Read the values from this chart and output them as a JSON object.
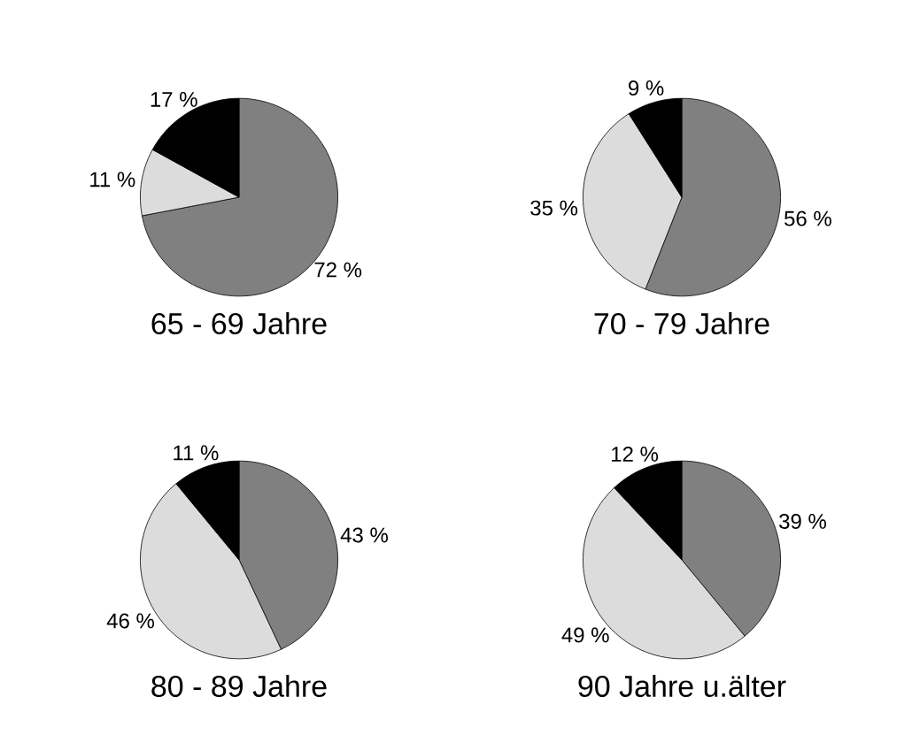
{
  "chart_data": [
    {
      "type": "pie",
      "title": "65 - 69 Jahre",
      "categories": [
        null,
        null,
        null
      ],
      "values": [
        72,
        11,
        17
      ],
      "colors": [
        "#808080",
        "#dcdcdc",
        "#000000"
      ],
      "value_labels": [
        "72 %",
        "11 %",
        "17 %"
      ]
    },
    {
      "type": "pie",
      "title": "70 - 79 Jahre",
      "categories": [
        null,
        null,
        null
      ],
      "values": [
        56,
        35,
        9
      ],
      "colors": [
        "#808080",
        "#dcdcdc",
        "#000000"
      ],
      "value_labels": [
        "56 %",
        "35 %",
        "9 %"
      ]
    },
    {
      "type": "pie",
      "title": "80 - 89 Jahre",
      "categories": [
        null,
        null,
        null
      ],
      "values": [
        43,
        46,
        11
      ],
      "colors": [
        "#808080",
        "#dcdcdc",
        "#000000"
      ],
      "value_labels": [
        "43 %",
        "46 %",
        "11 %"
      ]
    },
    {
      "type": "pie",
      "title": "90 Jahre u.älter",
      "categories": [
        null,
        null,
        null
      ],
      "values": [
        39,
        49,
        12
      ],
      "colors": [
        "#808080",
        "#dcdcdc",
        "#000000"
      ],
      "value_labels": [
        "39 %",
        "49 %",
        "12 %"
      ]
    }
  ]
}
